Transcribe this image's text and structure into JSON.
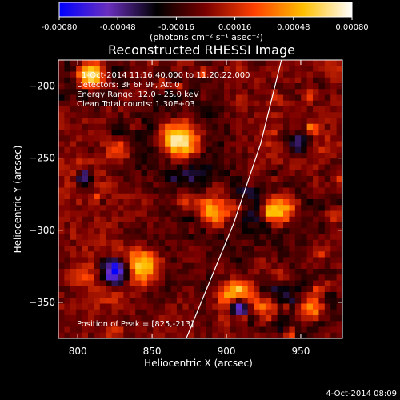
{
  "colors": {
    "background": "#000000",
    "foreground": "#ffffff",
    "limb": "#ffffff"
  },
  "colorbar": {
    "tick_labels": [
      "-0.00080",
      "-0.00048",
      "-0.00016",
      "0.00016",
      "0.00048",
      "0.00080"
    ],
    "units_label": "(photons cm⁻² s⁻¹ asec⁻²)",
    "colormap": [
      "#0000ff",
      "#6a2fbf",
      "#000000",
      "#7a0000",
      "#ff4000",
      "#ffbf00",
      "#ffffff"
    ]
  },
  "chart_data": {
    "type": "heatmap",
    "title": "Reconstructed RHESSI Image",
    "xlabel": "Heliocentric X (arcsec)",
    "ylabel": "Heliocentric Y (arcsec)",
    "xlim": [
      787,
      978
    ],
    "ylim": [
      -375,
      -182
    ],
    "x_ticks": [
      800,
      850,
      900,
      950
    ],
    "y_ticks": [
      -200,
      -250,
      -300,
      -350
    ],
    "x_tick_labels": [
      "800",
      "850",
      "900",
      "950"
    ],
    "y_tick_labels": [
      "−200",
      "−250",
      "−300",
      "−350"
    ],
    "value_range": [
      -0.0008,
      0.0008
    ],
    "grid": false,
    "annotations": [
      "1-Oct-2014 11:16:40.000 to 11:20:22.000",
      "Detectors: 3F 6F 9F, Att 0",
      "Energy Range: 12.0 - 25.0 keV",
      "Clean    Total counts: 1.30E+03",
      "Position of Peak = [825,-213]"
    ],
    "peak_position": [
      825,
      -213
    ],
    "limb_x_at_y": [
      [
        937,
        -182
      ],
      [
        923,
        -240
      ],
      [
        905,
        -295
      ],
      [
        887,
        -340
      ],
      [
        873,
        -375
      ]
    ]
  },
  "footer": {
    "timestamp": "4-Oct-2014 08:09"
  }
}
